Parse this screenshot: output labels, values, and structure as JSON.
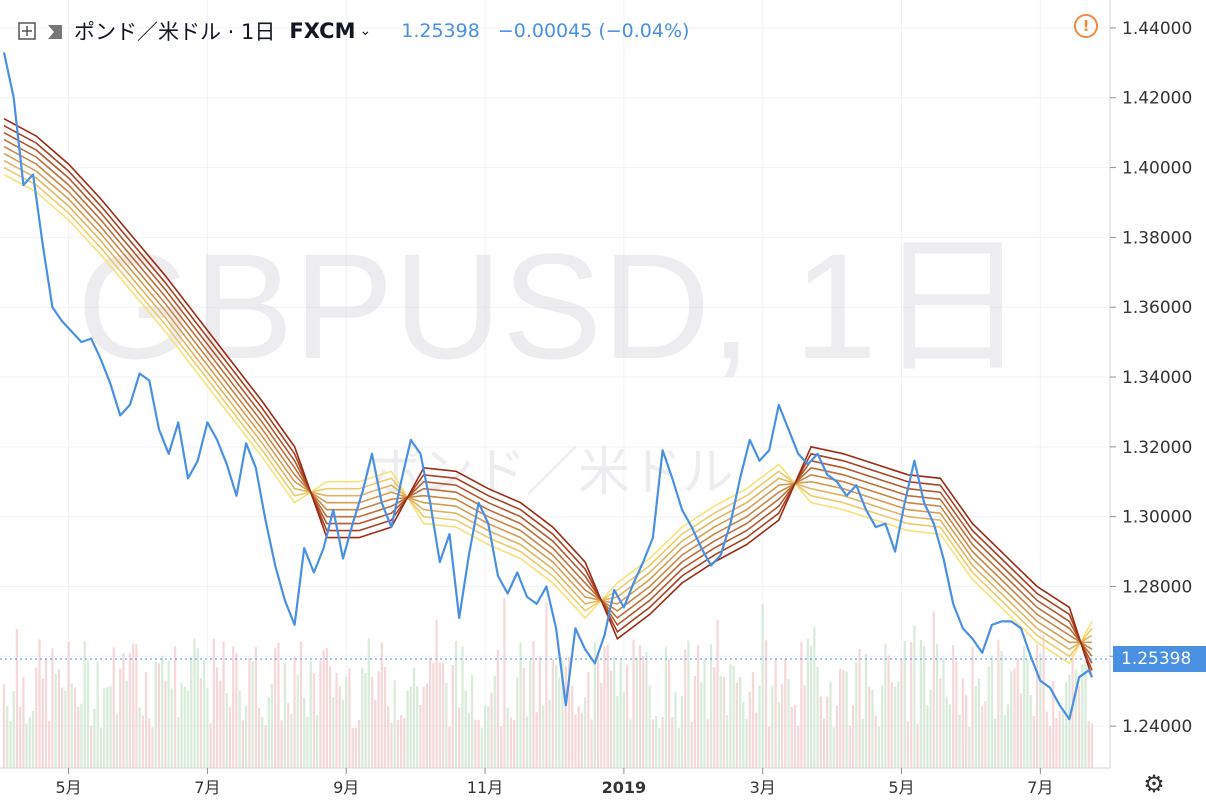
{
  "header": {
    "symbol": "ポンド／米ドル · 1日",
    "exchange": "FXCM",
    "last_price": "1.25398",
    "change": "−0.00045 (−0.04%)"
  },
  "watermark": {
    "line1": "GBPUSD, 1日",
    "line2": "ポンド／米ドル"
  },
  "icons": {
    "add": "plus-square-icon",
    "symbol_mark": "flag-icon",
    "dropdown": "chevron-down-icon",
    "alert": "alert-icon",
    "settings": "gear-icon"
  },
  "colors": {
    "price_line": "#4a90e2",
    "ribbon_fast": "#f7e27a",
    "ribbon_slow": "#9c2a14",
    "volume_up": "#cfe7cf",
    "volume_down": "#f3cfcf"
  },
  "chart_data": {
    "type": "line",
    "y_axis": {
      "ticks": [
        "1.44000",
        "1.42000",
        "1.40000",
        "1.38000",
        "1.36000",
        "1.34000",
        "1.32000",
        "1.30000",
        "1.28000",
        "1.26000",
        "1.24000"
      ],
      "min": 1.228,
      "max": 1.448,
      "current_price_label": "1.25398",
      "current_price": 1.25398
    },
    "x_axis": {
      "labels": [
        "5月",
        "7月",
        "9月",
        "11月",
        "2019",
        "3月",
        "5月",
        "7月"
      ],
      "label_index": [
        20,
        63,
        106,
        149,
        192,
        235,
        278,
        321
      ],
      "bold": [
        false,
        false,
        false,
        false,
        true,
        false,
        false,
        false
      ]
    },
    "series": [
      {
        "points": [
          [
            0,
            1.433
          ],
          [
            3,
            1.42
          ],
          [
            6,
            1.395
          ],
          [
            9,
            1.398
          ],
          [
            12,
            1.378
          ],
          [
            15,
            1.36
          ],
          [
            18,
            1.356
          ],
          [
            21,
            1.353
          ],
          [
            24,
            1.35
          ],
          [
            27,
            1.351
          ],
          [
            30,
            1.345
          ],
          [
            33,
            1.338
          ],
          [
            36,
            1.329
          ],
          [
            39,
            1.332
          ],
          [
            42,
            1.341
          ],
          [
            45,
            1.339
          ],
          [
            48,
            1.325
          ],
          [
            51,
            1.318
          ],
          [
            54,
            1.327
          ],
          [
            57,
            1.311
          ],
          [
            60,
            1.316
          ],
          [
            63,
            1.327
          ],
          [
            66,
            1.322
          ],
          [
            69,
            1.315
          ],
          [
            72,
            1.306
          ],
          [
            75,
            1.321
          ],
          [
            78,
            1.314
          ],
          [
            81,
            1.299
          ],
          [
            84,
            1.286
          ],
          [
            87,
            1.276
          ],
          [
            90,
            1.269
          ],
          [
            93,
            1.291
          ],
          [
            96,
            1.284
          ],
          [
            99,
            1.291
          ],
          [
            102,
            1.302
          ],
          [
            105,
            1.288
          ],
          [
            108,
            1.298
          ],
          [
            111,
            1.307
          ],
          [
            114,
            1.318
          ],
          [
            117,
            1.304
          ],
          [
            120,
            1.297
          ],
          [
            123,
            1.31
          ],
          [
            126,
            1.322
          ],
          [
            129,
            1.318
          ],
          [
            132,
            1.304
          ],
          [
            135,
            1.287
          ],
          [
            138,
            1.295
          ],
          [
            141,
            1.271
          ],
          [
            144,
            1.289
          ],
          [
            147,
            1.304
          ],
          [
            150,
            1.298
          ],
          [
            153,
            1.283
          ],
          [
            156,
            1.278
          ],
          [
            159,
            1.284
          ],
          [
            162,
            1.277
          ],
          [
            165,
            1.275
          ],
          [
            168,
            1.28
          ],
          [
            171,
            1.268
          ],
          [
            174,
            1.246
          ],
          [
            177,
            1.268
          ],
          [
            180,
            1.262
          ],
          [
            183,
            1.258
          ],
          [
            186,
            1.266
          ],
          [
            189,
            1.279
          ],
          [
            192,
            1.274
          ],
          [
            195,
            1.281
          ],
          [
            198,
            1.287
          ],
          [
            201,
            1.294
          ],
          [
            204,
            1.319
          ],
          [
            207,
            1.311
          ],
          [
            210,
            1.302
          ],
          [
            213,
            1.297
          ],
          [
            216,
            1.291
          ],
          [
            219,
            1.286
          ],
          [
            222,
            1.289
          ],
          [
            225,
            1.298
          ],
          [
            228,
            1.311
          ],
          [
            231,
            1.322
          ],
          [
            234,
            1.316
          ],
          [
            237,
            1.319
          ],
          [
            240,
            1.332
          ],
          [
            243,
            1.325
          ],
          [
            246,
            1.318
          ],
          [
            249,
            1.315
          ],
          [
            252,
            1.318
          ],
          [
            255,
            1.312
          ],
          [
            258,
            1.31
          ],
          [
            261,
            1.306
          ],
          [
            264,
            1.309
          ],
          [
            267,
            1.302
          ],
          [
            270,
            1.297
          ],
          [
            273,
            1.298
          ],
          [
            276,
            1.29
          ],
          [
            279,
            1.304
          ],
          [
            282,
            1.316
          ],
          [
            285,
            1.304
          ],
          [
            288,
            1.298
          ],
          [
            291,
            1.288
          ],
          [
            294,
            1.275
          ],
          [
            297,
            1.268
          ],
          [
            300,
            1.265
          ],
          [
            303,
            1.261
          ],
          [
            306,
            1.269
          ],
          [
            309,
            1.27
          ],
          [
            312,
            1.27
          ],
          [
            315,
            1.268
          ],
          [
            318,
            1.26
          ],
          [
            321,
            1.253
          ],
          [
            324,
            1.251
          ],
          [
            327,
            1.246
          ],
          [
            330,
            1.242
          ],
          [
            333,
            1.254
          ],
          [
            336,
            1.256
          ],
          [
            337,
            1.254
          ]
        ]
      }
    ],
    "ribbon": {
      "lines": 9,
      "spread": 0.002,
      "center": [
        [
          0,
          1.406
        ],
        [
          10,
          1.401
        ],
        [
          20,
          1.393
        ],
        [
          30,
          1.383
        ],
        [
          40,
          1.372
        ],
        [
          50,
          1.361
        ],
        [
          60,
          1.349
        ],
        [
          70,
          1.337
        ],
        [
          80,
          1.325
        ],
        [
          90,
          1.312
        ],
        [
          100,
          1.302
        ],
        [
          110,
          1.302
        ],
        [
          120,
          1.305
        ],
        [
          130,
          1.306
        ],
        [
          140,
          1.305
        ],
        [
          150,
          1.3
        ],
        [
          160,
          1.296
        ],
        [
          170,
          1.289
        ],
        [
          180,
          1.279
        ],
        [
          190,
          1.273
        ],
        [
          200,
          1.28
        ],
        [
          210,
          1.289
        ],
        [
          220,
          1.295
        ],
        [
          230,
          1.3
        ],
        [
          240,
          1.307
        ],
        [
          250,
          1.312
        ],
        [
          260,
          1.31
        ],
        [
          270,
          1.307
        ],
        [
          280,
          1.304
        ],
        [
          290,
          1.303
        ],
        [
          300,
          1.29
        ],
        [
          310,
          1.281
        ],
        [
          320,
          1.272
        ],
        [
          330,
          1.266
        ],
        [
          337,
          1.262
        ]
      ]
    },
    "volume": {
      "bars": 338,
      "max": 100
    }
  }
}
